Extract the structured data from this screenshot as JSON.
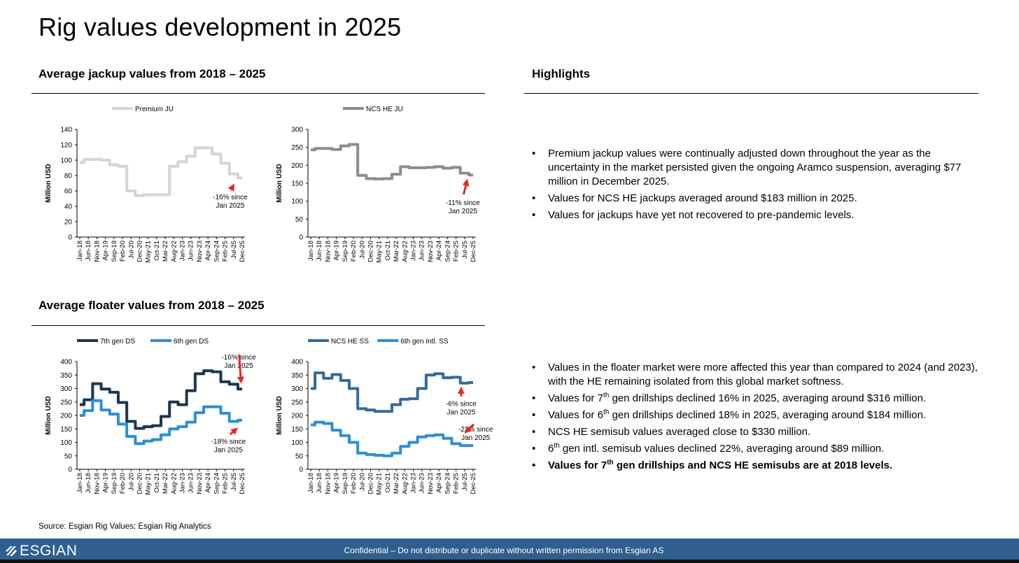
{
  "page": {
    "title": "Rig values development in 2025",
    "jackup_section_title": "Average jackup values from 2018 – 2025",
    "floater_section_title": "Average floater values from 2018 – 2025",
    "highlights_title": "Highlights",
    "source": "Source: Esgian Rig Values; Esgian Rig Analytics",
    "footer_text": "Confidential – Do not distribute or duplicate without written permission from Esgian AS",
    "logo_text": "ESGIAN",
    "footer_color": "#2f5f8f"
  },
  "jackup_highlights": [
    {
      "text": "Premium jackup values were continually adjusted down throughout the year as the uncertainty in the market persisted given the ongoing Aramco suspension, averaging $77 million in December 2025."
    },
    {
      "text": "Values for NCS HE jackups averaged around $183 million in 2025."
    },
    {
      "text": "Values for jackups have yet not recovered to pre-pandemic levels."
    }
  ],
  "floater_highlights": [
    {
      "text": "Values in the floater market were more affected this year than compared to 2024 (and 2023), with the HE remaining isolated from this global market softness."
    },
    {
      "prefix": "Values for 7",
      "sup": "th",
      "rest": " gen drillships declined 16% in 2025, averaging around $316 million."
    },
    {
      "prefix": "Values for 6",
      "sup": "th",
      "rest": " gen drillships declined 18% in 2025, averaging around $184 million."
    },
    {
      "text": "NCS HE semisub values averaged close to $330 million."
    },
    {
      "prefix": "6",
      "sup": "th",
      "rest": " gen intl. semisub values declined 22%, averaging around $89 million."
    },
    {
      "prefix": "Values for 7",
      "sup": "th",
      "rest": " gen drillships and NCS HE semisubs are at 2018 levels.",
      "bold": true
    }
  ],
  "chart_data": [
    {
      "type": "line",
      "ylabel": "Million USD",
      "ylim": [
        0,
        140
      ],
      "yticks": [
        0,
        20,
        40,
        60,
        80,
        100,
        120,
        140
      ],
      "x": [
        "Jan-18",
        "Jun-18",
        "Nov-18",
        "Apr-19",
        "Sep-19",
        "Feb-20",
        "Jul-20",
        "Dec-20",
        "May-21",
        "Oct-21",
        "Mar-22",
        "Aug-22",
        "Jan-23",
        "Jun-23",
        "Nov-23",
        "Apr-24",
        "Sep-24",
        "Feb-25",
        "Jul-25",
        "Dec-25"
      ],
      "legend_position": "top",
      "series": [
        {
          "name": "Premium JU",
          "color": "#d4d4d4",
          "width": 4,
          "values": [
            97,
            101,
            101,
            100,
            94,
            92,
            60,
            54,
            55,
            55,
            55,
            92,
            98,
            105,
            116,
            116,
            108,
            96,
            82,
            77
          ]
        }
      ],
      "annotations": [
        {
          "text": [
            "-16% since",
            "Jan 2025"
          ],
          "x_index": 18.2,
          "y": 72,
          "text_x_index": 17.6,
          "text_y": 49
        }
      ]
    },
    {
      "type": "line",
      "ylabel": "Million USD",
      "ylim": [
        0,
        300
      ],
      "yticks": [
        0,
        50,
        100,
        150,
        200,
        250,
        300
      ],
      "x": [
        "Jan-18",
        "Jun-18",
        "Nov-18",
        "Apr-19",
        "Sep-19",
        "Feb-20",
        "Jul-20",
        "Dec-20",
        "May-21",
        "Oct-21",
        "Mar-22",
        "Aug-22",
        "Jan-23",
        "Jun-23",
        "Nov-23",
        "Apr-24",
        "Sep-24",
        "Feb-25",
        "Jul-25",
        "Dec-25"
      ],
      "legend_position": "top",
      "series": [
        {
          "name": "NCS HE JU",
          "color": "#8c8c8c",
          "width": 4,
          "values": [
            243,
            247,
            247,
            244,
            254,
            258,
            172,
            163,
            162,
            163,
            175,
            196,
            193,
            193,
            194,
            196,
            192,
            194,
            178,
            173
          ]
        }
      ],
      "annotations": [
        {
          "text": [
            "-11% since",
            "Jan 2025"
          ],
          "x_index": 18.4,
          "y": 168,
          "text_x_index": 17.8,
          "text_y": 90
        }
      ]
    },
    {
      "type": "line",
      "ylabel": "Million USD",
      "ylim": [
        0,
        400
      ],
      "yticks": [
        0,
        50,
        100,
        150,
        200,
        250,
        300,
        350,
        400
      ],
      "x": [
        "Jan-18",
        "Jun-18",
        "Nov-18",
        "Apr-19",
        "Sep-19",
        "Feb-20",
        "Jul-20",
        "Dec-20",
        "May-21",
        "Oct-21",
        "Mar-22",
        "Aug-22",
        "Jan-23",
        "Jun-23",
        "Nov-23",
        "Apr-24",
        "Sep-24",
        "Feb-25",
        "Jul-25",
        "Dec-25"
      ],
      "legend_position": "top",
      "series": [
        {
          "name": "7th gen DS",
          "color": "#1d3650",
          "width": 4,
          "values": [
            240,
            258,
            318,
            298,
            286,
            248,
            178,
            152,
            158,
            162,
            196,
            250,
            240,
            292,
            355,
            366,
            362,
            325,
            316,
            298
          ]
        },
        {
          "name": "6th gen DS",
          "color": "#2d8ed6",
          "width": 4,
          "values": [
            200,
            218,
            255,
            220,
            205,
            168,
            122,
            95,
            105,
            110,
            128,
            150,
            158,
            175,
            210,
            232,
            232,
            208,
            178,
            182
          ]
        }
      ],
      "annotations": [
        {
          "text": [
            "-16% since",
            "Jan 2025"
          ],
          "x_index": 18.9,
          "y": 310,
          "text_x_index": 18.6,
          "text_y": 408
        },
        {
          "text": [
            "-18% since",
            "Jan 2025"
          ],
          "x_index": 18.7,
          "y": 160,
          "text_x_index": 17.4,
          "text_y": 95
        }
      ]
    },
    {
      "type": "line",
      "ylabel": "Million USD",
      "ylim": [
        0,
        400
      ],
      "yticks": [
        0,
        50,
        100,
        150,
        200,
        250,
        300,
        350,
        400
      ],
      "x": [
        "Jan-18",
        "Jun-18",
        "Nov-18",
        "Apr-19",
        "Sep-19",
        "Feb-20",
        "Jul-20",
        "Dec-20",
        "May-21",
        "Oct-21",
        "Mar-22",
        "Aug-22",
        "Jan-23",
        "Jun-23",
        "Nov-23",
        "Apr-24",
        "Sep-24",
        "Feb-25",
        "Jul-25",
        "Dec-25"
      ],
      "legend_position": "top",
      "series": [
        {
          "name": "NCS HE SS",
          "color": "#356a99",
          "width": 4,
          "values": [
            300,
            358,
            338,
            352,
            330,
            300,
            225,
            220,
            215,
            215,
            240,
            260,
            262,
            300,
            350,
            355,
            340,
            342,
            320,
            322
          ]
        },
        {
          "name": "6th gen Intl. SS",
          "color": "#2d8ed6",
          "width": 4,
          "values": [
            165,
            175,
            170,
            145,
            125,
            100,
            60,
            55,
            52,
            50,
            60,
            85,
            100,
            120,
            125,
            128,
            115,
            95,
            88,
            88
          ]
        }
      ],
      "annotations": [
        {
          "text": [
            "-6% since",
            "Jan 2025"
          ],
          "x_index": 17.6,
          "y": 315,
          "text_x_index": 17.6,
          "text_y": 235
        },
        {
          "text": [
            "-22% since",
            "Jan 2025"
          ],
          "x_index": 17.8,
          "y": 128,
          "text_x_index": 19.3,
          "text_y": 140
        }
      ]
    }
  ]
}
